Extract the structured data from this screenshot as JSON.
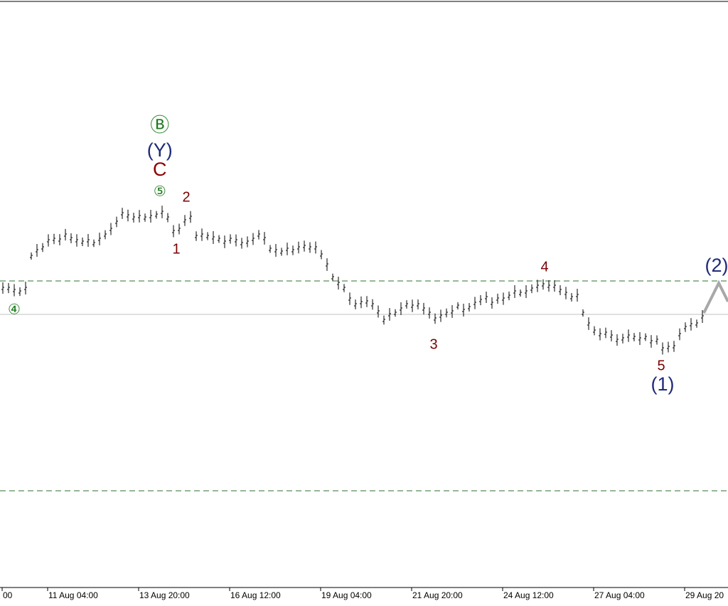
{
  "chart_data": {
    "type": "bar-ticks",
    "categories": [
      "00",
      null,
      null,
      null,
      null,
      null,
      null,
      null,
      "11 Aug 04:00",
      null,
      null,
      null,
      null,
      null,
      null,
      null,
      null,
      null,
      null,
      null,
      null,
      null,
      null,
      null,
      "13 Aug 20:00",
      null,
      null,
      null,
      null,
      null,
      null,
      null,
      null,
      null,
      null,
      null,
      null,
      null,
      null,
      null,
      "16 Aug 12:00",
      null,
      null,
      null,
      null,
      null,
      null,
      null,
      null,
      null,
      null,
      null,
      null,
      null,
      null,
      null,
      "19 Aug 04:00",
      null,
      null,
      null,
      null,
      null,
      null,
      null,
      null,
      null,
      null,
      null,
      null,
      null,
      null,
      null,
      "21 Aug 20:00",
      null,
      null,
      null,
      null,
      null,
      null,
      null,
      null,
      null,
      null,
      null,
      null,
      null,
      null,
      null,
      "24 Aug 12:00",
      null,
      null,
      null,
      null,
      null,
      null,
      null,
      null,
      null,
      null,
      null,
      null,
      null,
      null,
      null,
      "27 Aug 04:00",
      null,
      null,
      null,
      null,
      null,
      null,
      null,
      null,
      null,
      null,
      null,
      null,
      null,
      null,
      null,
      "29 Aug 20",
      null,
      null,
      null
    ],
    "values": [
      447,
      447,
      444,
      442,
      447,
      492,
      500,
      504,
      514,
      516,
      515,
      522,
      517,
      514,
      512,
      514,
      510,
      516,
      522,
      530,
      540,
      552,
      549,
      546,
      548,
      546,
      548,
      550,
      554,
      546,
      527,
      530,
      542,
      547,
      520,
      522,
      520,
      518,
      516,
      512,
      516,
      514,
      510,
      512,
      516,
      522,
      517,
      502,
      500,
      498,
      502,
      500,
      504,
      506,
      504,
      504,
      494,
      480,
      462,
      454,
      447,
      432,
      424,
      427,
      428,
      424,
      414,
      402,
      410,
      412,
      418,
      424,
      422,
      424,
      418,
      412,
      404,
      408,
      412,
      414,
      422,
      416,
      420,
      426,
      430,
      434,
      426,
      432,
      432,
      436,
      442,
      440,
      442,
      446,
      450,
      452,
      450,
      450,
      444,
      440,
      434,
      437,
      412,
      397,
      387,
      382,
      384,
      380,
      374,
      376,
      380,
      378,
      376,
      378,
      372,
      374,
      362,
      364,
      365,
      382,
      392,
      396,
      397,
      407
    ],
    "color": "#000000",
    "ylim": [
      0,
      852
    ],
    "hlines": [
      {
        "value": 457,
        "color": "#2f6f2f",
        "dashed": true
      },
      {
        "value": 410,
        "color": "#c0c0c0",
        "dashed": false
      },
      {
        "value": 162,
        "color": "#2f6f2f",
        "dashed": true
      }
    ],
    "annotations": [
      {
        "text": "Ⓑ",
        "color": "#1a7a1a",
        "x": 27.6,
        "y": 674,
        "style": "large"
      },
      {
        "text": "(Y)",
        "color": "#1f2a7a",
        "x": 27.6,
        "y": 639,
        "style": "large"
      },
      {
        "text": "C",
        "color": "#8b0000",
        "x": 27.6,
        "y": 612,
        "style": "large"
      },
      {
        "text": "⑤",
        "color": "#1a7a1a",
        "x": 27.6,
        "y": 582,
        "style": "small"
      },
      {
        "text": "2",
        "color": "#7a0000",
        "x": 32.25,
        "y": 574,
        "style": "small"
      },
      {
        "text": "1",
        "color": "#7a0000",
        "x": 30.5,
        "y": 501,
        "style": "small"
      },
      {
        "text": "④",
        "color": "#1a7a1a",
        "x": 2,
        "y": 416,
        "style": "small"
      },
      {
        "text": "3",
        "color": "#7a0000",
        "x": 75.75,
        "y": 367,
        "style": "small"
      },
      {
        "text": "4",
        "color": "#7a0000",
        "x": 95.25,
        "y": 476,
        "style": "small"
      },
      {
        "text": "5",
        "color": "#7a0000",
        "x": 115.75,
        "y": 337,
        "style": "small"
      },
      {
        "text": "(1)",
        "color": "#1f2a7a",
        "x": 116,
        "y": 310,
        "style": "large"
      },
      {
        "text": "(2)",
        "color": "#1f2a7a",
        "x": 125.5,
        "y": 477,
        "style": "large"
      }
    ]
  }
}
